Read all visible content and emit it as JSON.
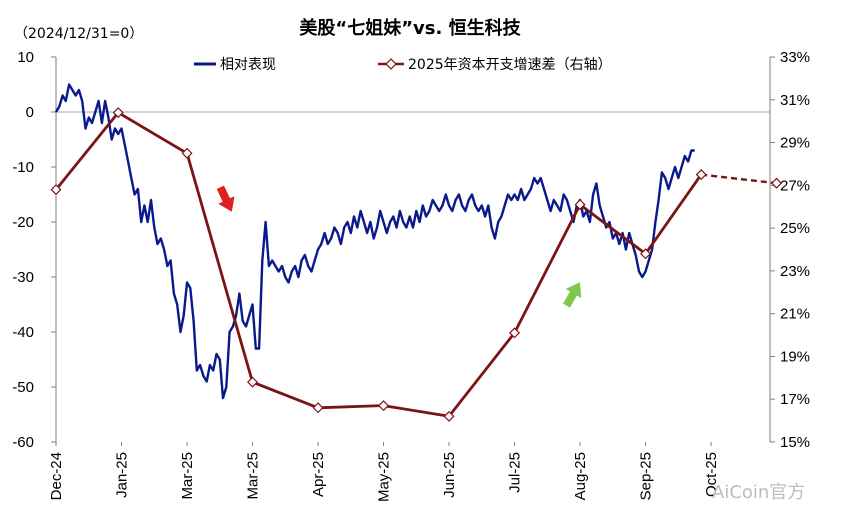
{
  "chart_data": {
    "type": "line",
    "title": "美股“七姐妹”vs. 恒生科技",
    "note": "（2024/12/31=0）",
    "legend_position": "top",
    "watermark": "AiCoin官方",
    "x_categories": [
      "Dec-24",
      "Jan-25",
      "Mar-25",
      "Mar-25",
      "Apr-25",
      "May-25",
      "Jun-25",
      "Jul-25",
      "Aug-25",
      "Sep-25",
      "Oct-25"
    ],
    "y_left": {
      "min": -60,
      "max": 10,
      "ticks": [
        "10",
        "0",
        "-10",
        "-20",
        "-30",
        "-40",
        "-50",
        "-60"
      ]
    },
    "y_right": {
      "min": 15,
      "max": 33,
      "ticks": [
        "33%",
        "31%",
        "29%",
        "27%",
        "25%",
        "23%",
        "21%",
        "19%",
        "17%",
        "15%"
      ]
    },
    "gridlines": false,
    "series": [
      {
        "name": "相对表现",
        "axis": "left",
        "color": "#0a1a8c",
        "points": [
          [
            0.0,
            0
          ],
          [
            0.05,
            1
          ],
          [
            0.1,
            3
          ],
          [
            0.15,
            2
          ],
          [
            0.2,
            5
          ],
          [
            0.25,
            4
          ],
          [
            0.3,
            3
          ],
          [
            0.35,
            4
          ],
          [
            0.4,
            2
          ],
          [
            0.45,
            -3
          ],
          [
            0.5,
            -1
          ],
          [
            0.55,
            -2
          ],
          [
            0.6,
            0
          ],
          [
            0.65,
            2
          ],
          [
            0.7,
            -2
          ],
          [
            0.75,
            2
          ],
          [
            0.8,
            -1
          ],
          [
            0.85,
            -5
          ],
          [
            0.9,
            -3
          ],
          [
            0.95,
            -4
          ],
          [
            1.0,
            -3
          ],
          [
            1.05,
            -6
          ],
          [
            1.1,
            -9
          ],
          [
            1.15,
            -12
          ],
          [
            1.2,
            -15
          ],
          [
            1.25,
            -14
          ],
          [
            1.3,
            -20
          ],
          [
            1.35,
            -17
          ],
          [
            1.4,
            -20
          ],
          [
            1.45,
            -16
          ],
          [
            1.5,
            -21
          ],
          [
            1.55,
            -24
          ],
          [
            1.6,
            -23
          ],
          [
            1.65,
            -25
          ],
          [
            1.7,
            -28
          ],
          [
            1.75,
            -27
          ],
          [
            1.8,
            -33
          ],
          [
            1.85,
            -35
          ],
          [
            1.9,
            -40
          ],
          [
            1.95,
            -37
          ],
          [
            2.0,
            -31
          ],
          [
            2.05,
            -32
          ],
          [
            2.1,
            -38
          ],
          [
            2.15,
            -47
          ],
          [
            2.2,
            -46
          ],
          [
            2.25,
            -48
          ],
          [
            2.3,
            -49
          ],
          [
            2.35,
            -46
          ],
          [
            2.4,
            -47
          ],
          [
            2.45,
            -44
          ],
          [
            2.5,
            -45
          ],
          [
            2.55,
            -52
          ],
          [
            2.6,
            -50
          ],
          [
            2.65,
            -40
          ],
          [
            2.7,
            -39
          ],
          [
            2.75,
            -37
          ],
          [
            2.8,
            -33
          ],
          [
            2.85,
            -38
          ],
          [
            2.9,
            -39
          ],
          [
            2.95,
            -37
          ],
          [
            3.0,
            -35
          ],
          [
            3.05,
            -43
          ],
          [
            3.1,
            -43
          ],
          [
            3.15,
            -27
          ],
          [
            3.2,
            -20
          ],
          [
            3.25,
            -28
          ],
          [
            3.3,
            -27
          ],
          [
            3.35,
            -28
          ],
          [
            3.4,
            -29
          ],
          [
            3.45,
            -28
          ],
          [
            3.5,
            -30
          ],
          [
            3.55,
            -31
          ],
          [
            3.6,
            -29
          ],
          [
            3.65,
            -28
          ],
          [
            3.7,
            -30
          ],
          [
            3.75,
            -27
          ],
          [
            3.8,
            -26
          ],
          [
            3.85,
            -28
          ],
          [
            3.9,
            -29
          ],
          [
            3.95,
            -27
          ],
          [
            4.0,
            -25
          ],
          [
            4.05,
            -24
          ],
          [
            4.1,
            -22
          ],
          [
            4.15,
            -24
          ],
          [
            4.2,
            -23
          ],
          [
            4.25,
            -21
          ],
          [
            4.3,
            -22
          ],
          [
            4.35,
            -24
          ],
          [
            4.4,
            -21
          ],
          [
            4.45,
            -20
          ],
          [
            4.5,
            -22
          ],
          [
            4.55,
            -19
          ],
          [
            4.6,
            -21
          ],
          [
            4.65,
            -18
          ],
          [
            4.7,
            -20
          ],
          [
            4.75,
            -22
          ],
          [
            4.8,
            -20
          ],
          [
            4.85,
            -23
          ],
          [
            4.9,
            -21
          ],
          [
            4.95,
            -18
          ],
          [
            5.0,
            -20
          ],
          [
            5.05,
            -22
          ],
          [
            5.1,
            -20
          ],
          [
            5.15,
            -19
          ],
          [
            5.2,
            -21
          ],
          [
            5.25,
            -18
          ],
          [
            5.3,
            -20
          ],
          [
            5.35,
            -21
          ],
          [
            5.4,
            -19
          ],
          [
            5.45,
            -21
          ],
          [
            5.5,
            -18
          ],
          [
            5.55,
            -20
          ],
          [
            5.6,
            -17
          ],
          [
            5.65,
            -19
          ],
          [
            5.7,
            -18
          ],
          [
            5.75,
            -16
          ],
          [
            5.8,
            -17
          ],
          [
            5.85,
            -18
          ],
          [
            5.9,
            -17
          ],
          [
            5.95,
            -15
          ],
          [
            6.0,
            -17
          ],
          [
            6.05,
            -18
          ],
          [
            6.1,
            -16
          ],
          [
            6.15,
            -15
          ],
          [
            6.2,
            -17
          ],
          [
            6.25,
            -18
          ],
          [
            6.3,
            -16
          ],
          [
            6.35,
            -15
          ],
          [
            6.4,
            -17
          ],
          [
            6.45,
            -18
          ],
          [
            6.5,
            -17
          ],
          [
            6.55,
            -19
          ],
          [
            6.6,
            -17
          ],
          [
            6.65,
            -21
          ],
          [
            6.7,
            -23
          ],
          [
            6.75,
            -20
          ],
          [
            6.8,
            -19
          ],
          [
            6.85,
            -17
          ],
          [
            6.9,
            -15
          ],
          [
            6.95,
            -16
          ],
          [
            7.0,
            -15
          ],
          [
            7.05,
            -16
          ],
          [
            7.1,
            -14
          ],
          [
            7.15,
            -16
          ],
          [
            7.2,
            -15
          ],
          [
            7.25,
            -14
          ],
          [
            7.3,
            -12
          ],
          [
            7.35,
            -13
          ],
          [
            7.4,
            -12
          ],
          [
            7.45,
            -14
          ],
          [
            7.5,
            -16
          ],
          [
            7.55,
            -18
          ],
          [
            7.6,
            -16
          ],
          [
            7.65,
            -17
          ],
          [
            7.7,
            -18
          ],
          [
            7.75,
            -15
          ],
          [
            7.8,
            -16
          ],
          [
            7.85,
            -18
          ],
          [
            7.9,
            -20
          ],
          [
            7.95,
            -17
          ],
          [
            8.0,
            -16
          ],
          [
            8.05,
            -19
          ],
          [
            8.1,
            -18
          ],
          [
            8.15,
            -20
          ],
          [
            8.2,
            -15
          ],
          [
            8.25,
            -13
          ],
          [
            8.3,
            -17
          ],
          [
            8.35,
            -19
          ],
          [
            8.4,
            -21
          ],
          [
            8.45,
            -20
          ],
          [
            8.5,
            -23
          ],
          [
            8.55,
            -22
          ],
          [
            8.6,
            -24
          ],
          [
            8.65,
            -22
          ],
          [
            8.7,
            -25
          ],
          [
            8.75,
            -22
          ],
          [
            8.8,
            -24
          ],
          [
            8.85,
            -26
          ],
          [
            8.9,
            -29
          ],
          [
            8.95,
            -30
          ],
          [
            9.0,
            -29
          ],
          [
            9.05,
            -27
          ],
          [
            9.1,
            -25
          ],
          [
            9.15,
            -20
          ],
          [
            9.2,
            -16
          ],
          [
            9.25,
            -11
          ],
          [
            9.3,
            -12
          ],
          [
            9.35,
            -14
          ],
          [
            9.4,
            -12
          ],
          [
            9.45,
            -10
          ],
          [
            9.5,
            -12
          ],
          [
            9.55,
            -10
          ],
          [
            9.6,
            -8
          ],
          [
            9.65,
            -9
          ],
          [
            9.7,
            -7
          ],
          [
            9.75,
            -7
          ]
        ]
      },
      {
        "name": "2025年资本开支增速差（右轴）",
        "axis": "right",
        "color": "#7b1414",
        "points": [
          [
            0.0,
            26.8
          ],
          [
            0.95,
            30.4
          ],
          [
            2.0,
            28.5
          ],
          [
            3.0,
            17.8
          ],
          [
            4.0,
            16.6
          ],
          [
            5.0,
            16.7
          ],
          [
            6.0,
            16.2
          ],
          [
            7.0,
            20.1
          ],
          [
            8.0,
            26.1
          ],
          [
            9.0,
            23.8
          ],
          [
            9.85,
            27.5
          ]
        ],
        "projection": [
          [
            9.85,
            27.5
          ],
          [
            11.0,
            27.1
          ]
        ]
      }
    ],
    "annotations": [
      {
        "type": "arrow",
        "direction": "down",
        "color": "#e02020",
        "x": 2.6,
        "y": -16
      },
      {
        "type": "arrow",
        "direction": "up",
        "color": "#7fc84a",
        "x": 7.9,
        "y": -33
      }
    ]
  }
}
